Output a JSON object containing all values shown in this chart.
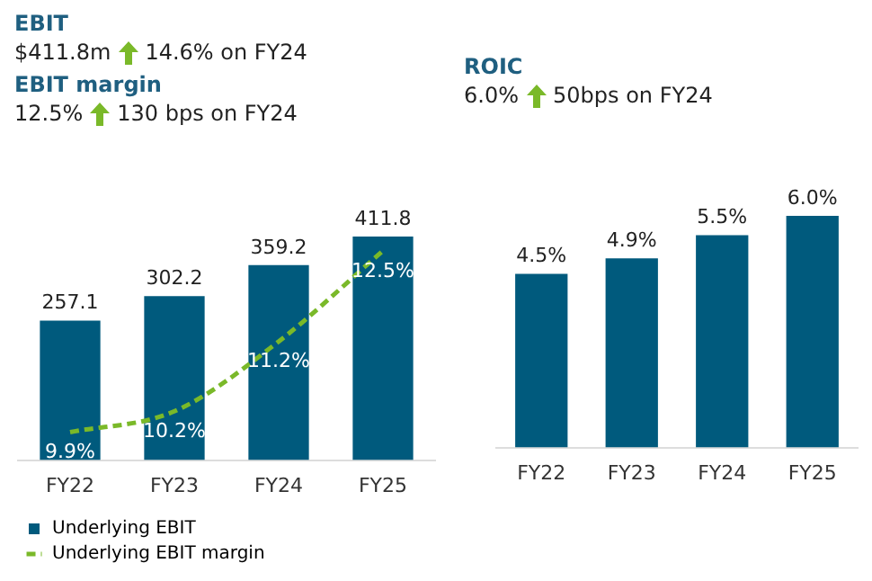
{
  "chart_data": [
    {
      "type": "bar",
      "title": "EBIT",
      "annotations": [
        "$411.8m",
        "14.6% on FY24",
        "EBIT margin",
        "12.5%",
        "130 bps on FY24"
      ],
      "categories": [
        "FY22",
        "FY23",
        "FY24",
        "FY25"
      ],
      "series": [
        {
          "name": "Underlying EBIT",
          "type": "bar",
          "color": "#005a7d",
          "values": [
            257.1,
            302.2,
            359.2,
            411.8
          ],
          "data_labels": true
        },
        {
          "name": "Underlying EBIT margin",
          "type": "line",
          "axis": "y2",
          "color": "#7ab929",
          "values": [
            9.9,
            10.2,
            11.2,
            12.5
          ],
          "value_labels": [
            "9.9%",
            "10.2%",
            "11.2%",
            "12.5%"
          ],
          "line_style": "dashed",
          "marker": "none"
        }
      ],
      "tick_labels": "x",
      "grid": false,
      "legend": "bottom"
    },
    {
      "type": "bar",
      "title": "ROIC",
      "annotations": [
        "6.0%",
        "50bps on FY24"
      ],
      "categories": [
        "FY22",
        "FY23",
        "FY24",
        "FY25"
      ],
      "series": [
        {
          "color": "#005a7d",
          "values": [
            4.5,
            4.9,
            5.5,
            6.0
          ],
          "value_labels": [
            "4.5%",
            "4.9%",
            "5.5%",
            "6.0%"
          ]
        }
      ],
      "tick_labels": "x",
      "grid": false,
      "legend": false
    }
  ]
}
